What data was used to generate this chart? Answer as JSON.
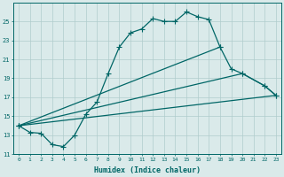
{
  "xlabel": "Humidex (Indice chaleur)",
  "bg_color": "#daeaea",
  "grid_color": "#b0cccc",
  "line_color": "#006666",
  "xlim": [
    -0.5,
    23.5
  ],
  "ylim": [
    11,
    27
  ],
  "xticks": [
    0,
    1,
    2,
    3,
    4,
    5,
    6,
    7,
    8,
    9,
    10,
    11,
    12,
    13,
    14,
    15,
    16,
    17,
    18,
    19,
    20,
    21,
    22,
    23
  ],
  "yticks": [
    11,
    13,
    15,
    17,
    19,
    21,
    23,
    25
  ],
  "line1_x": [
    0,
    1,
    2,
    3,
    4,
    5,
    6,
    7,
    8,
    9,
    10,
    11,
    12,
    13,
    14,
    15,
    16,
    17,
    18
  ],
  "line1_y": [
    14.0,
    13.3,
    13.2,
    12.0,
    11.8,
    13.0,
    15.2,
    16.5,
    19.5,
    22.3,
    23.8,
    24.2,
    25.3,
    25.0,
    25.0,
    26.0,
    25.5,
    25.2,
    22.3
  ],
  "line2_x": [
    0,
    18,
    19,
    20,
    22,
    23
  ],
  "line2_y": [
    14.0,
    22.3,
    20.0,
    19.5,
    18.2,
    17.2
  ],
  "line3_x": [
    0,
    20,
    22,
    23
  ],
  "line3_y": [
    14.0,
    19.5,
    18.2,
    17.2
  ],
  "line4_x": [
    0,
    23
  ],
  "line4_y": [
    14.0,
    17.2
  ]
}
